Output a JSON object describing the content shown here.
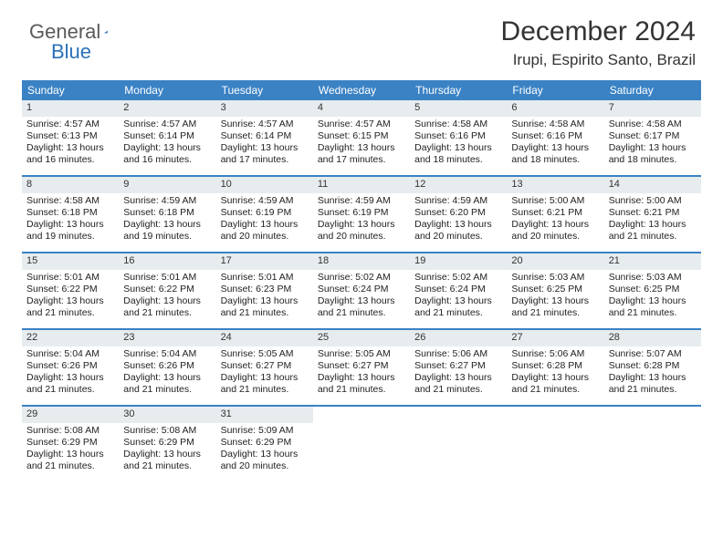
{
  "logo": {
    "text1": "General",
    "text2": "Blue",
    "color_general": "#5a5a5a",
    "color_blue": "#2a71b8",
    "triangle_color": "#2a71b8"
  },
  "title": "December 2024",
  "subtitle": "Irupi, Espirito Santo, Brazil",
  "colors": {
    "header_bg": "#3a82c4",
    "header_text": "#ffffff",
    "daynum_bg": "#e7ecef",
    "week_border": "#3a82c4",
    "body_text": "#333333"
  },
  "typography": {
    "title_fontsize": 30,
    "subtitle_fontsize": 17,
    "dow_fontsize": 12,
    "cell_fontsize": 10.5
  },
  "days_of_week": [
    "Sunday",
    "Monday",
    "Tuesday",
    "Wednesday",
    "Thursday",
    "Friday",
    "Saturday"
  ],
  "weeks": [
    [
      {
        "n": "1",
        "sr": "Sunrise: 4:57 AM",
        "ss": "Sunset: 6:13 PM",
        "d1": "Daylight: 13 hours",
        "d2": "and 16 minutes."
      },
      {
        "n": "2",
        "sr": "Sunrise: 4:57 AM",
        "ss": "Sunset: 6:14 PM",
        "d1": "Daylight: 13 hours",
        "d2": "and 16 minutes."
      },
      {
        "n": "3",
        "sr": "Sunrise: 4:57 AM",
        "ss": "Sunset: 6:14 PM",
        "d1": "Daylight: 13 hours",
        "d2": "and 17 minutes."
      },
      {
        "n": "4",
        "sr": "Sunrise: 4:57 AM",
        "ss": "Sunset: 6:15 PM",
        "d1": "Daylight: 13 hours",
        "d2": "and 17 minutes."
      },
      {
        "n": "5",
        "sr": "Sunrise: 4:58 AM",
        "ss": "Sunset: 6:16 PM",
        "d1": "Daylight: 13 hours",
        "d2": "and 18 minutes."
      },
      {
        "n": "6",
        "sr": "Sunrise: 4:58 AM",
        "ss": "Sunset: 6:16 PM",
        "d1": "Daylight: 13 hours",
        "d2": "and 18 minutes."
      },
      {
        "n": "7",
        "sr": "Sunrise: 4:58 AM",
        "ss": "Sunset: 6:17 PM",
        "d1": "Daylight: 13 hours",
        "d2": "and 18 minutes."
      }
    ],
    [
      {
        "n": "8",
        "sr": "Sunrise: 4:58 AM",
        "ss": "Sunset: 6:18 PM",
        "d1": "Daylight: 13 hours",
        "d2": "and 19 minutes."
      },
      {
        "n": "9",
        "sr": "Sunrise: 4:59 AM",
        "ss": "Sunset: 6:18 PM",
        "d1": "Daylight: 13 hours",
        "d2": "and 19 minutes."
      },
      {
        "n": "10",
        "sr": "Sunrise: 4:59 AM",
        "ss": "Sunset: 6:19 PM",
        "d1": "Daylight: 13 hours",
        "d2": "and 20 minutes."
      },
      {
        "n": "11",
        "sr": "Sunrise: 4:59 AM",
        "ss": "Sunset: 6:19 PM",
        "d1": "Daylight: 13 hours",
        "d2": "and 20 minutes."
      },
      {
        "n": "12",
        "sr": "Sunrise: 4:59 AM",
        "ss": "Sunset: 6:20 PM",
        "d1": "Daylight: 13 hours",
        "d2": "and 20 minutes."
      },
      {
        "n": "13",
        "sr": "Sunrise: 5:00 AM",
        "ss": "Sunset: 6:21 PM",
        "d1": "Daylight: 13 hours",
        "d2": "and 20 minutes."
      },
      {
        "n": "14",
        "sr": "Sunrise: 5:00 AM",
        "ss": "Sunset: 6:21 PM",
        "d1": "Daylight: 13 hours",
        "d2": "and 21 minutes."
      }
    ],
    [
      {
        "n": "15",
        "sr": "Sunrise: 5:01 AM",
        "ss": "Sunset: 6:22 PM",
        "d1": "Daylight: 13 hours",
        "d2": "and 21 minutes."
      },
      {
        "n": "16",
        "sr": "Sunrise: 5:01 AM",
        "ss": "Sunset: 6:22 PM",
        "d1": "Daylight: 13 hours",
        "d2": "and 21 minutes."
      },
      {
        "n": "17",
        "sr": "Sunrise: 5:01 AM",
        "ss": "Sunset: 6:23 PM",
        "d1": "Daylight: 13 hours",
        "d2": "and 21 minutes."
      },
      {
        "n": "18",
        "sr": "Sunrise: 5:02 AM",
        "ss": "Sunset: 6:24 PM",
        "d1": "Daylight: 13 hours",
        "d2": "and 21 minutes."
      },
      {
        "n": "19",
        "sr": "Sunrise: 5:02 AM",
        "ss": "Sunset: 6:24 PM",
        "d1": "Daylight: 13 hours",
        "d2": "and 21 minutes."
      },
      {
        "n": "20",
        "sr": "Sunrise: 5:03 AM",
        "ss": "Sunset: 6:25 PM",
        "d1": "Daylight: 13 hours",
        "d2": "and 21 minutes."
      },
      {
        "n": "21",
        "sr": "Sunrise: 5:03 AM",
        "ss": "Sunset: 6:25 PM",
        "d1": "Daylight: 13 hours",
        "d2": "and 21 minutes."
      }
    ],
    [
      {
        "n": "22",
        "sr": "Sunrise: 5:04 AM",
        "ss": "Sunset: 6:26 PM",
        "d1": "Daylight: 13 hours",
        "d2": "and 21 minutes."
      },
      {
        "n": "23",
        "sr": "Sunrise: 5:04 AM",
        "ss": "Sunset: 6:26 PM",
        "d1": "Daylight: 13 hours",
        "d2": "and 21 minutes."
      },
      {
        "n": "24",
        "sr": "Sunrise: 5:05 AM",
        "ss": "Sunset: 6:27 PM",
        "d1": "Daylight: 13 hours",
        "d2": "and 21 minutes."
      },
      {
        "n": "25",
        "sr": "Sunrise: 5:05 AM",
        "ss": "Sunset: 6:27 PM",
        "d1": "Daylight: 13 hours",
        "d2": "and 21 minutes."
      },
      {
        "n": "26",
        "sr": "Sunrise: 5:06 AM",
        "ss": "Sunset: 6:27 PM",
        "d1": "Daylight: 13 hours",
        "d2": "and 21 minutes."
      },
      {
        "n": "27",
        "sr": "Sunrise: 5:06 AM",
        "ss": "Sunset: 6:28 PM",
        "d1": "Daylight: 13 hours",
        "d2": "and 21 minutes."
      },
      {
        "n": "28",
        "sr": "Sunrise: 5:07 AM",
        "ss": "Sunset: 6:28 PM",
        "d1": "Daylight: 13 hours",
        "d2": "and 21 minutes."
      }
    ],
    [
      {
        "n": "29",
        "sr": "Sunrise: 5:08 AM",
        "ss": "Sunset: 6:29 PM",
        "d1": "Daylight: 13 hours",
        "d2": "and 21 minutes."
      },
      {
        "n": "30",
        "sr": "Sunrise: 5:08 AM",
        "ss": "Sunset: 6:29 PM",
        "d1": "Daylight: 13 hours",
        "d2": "and 21 minutes."
      },
      {
        "n": "31",
        "sr": "Sunrise: 5:09 AM",
        "ss": "Sunset: 6:29 PM",
        "d1": "Daylight: 13 hours",
        "d2": "and 20 minutes."
      },
      {
        "empty": true
      },
      {
        "empty": true
      },
      {
        "empty": true
      },
      {
        "empty": true
      }
    ]
  ]
}
